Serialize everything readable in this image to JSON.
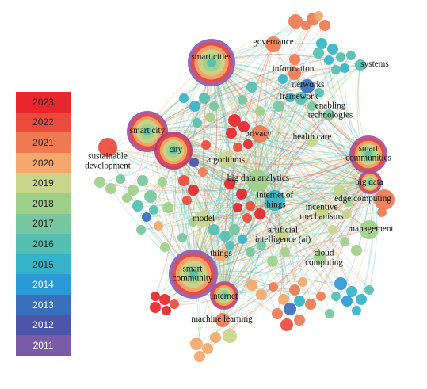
{
  "legend": {
    "years": [
      {
        "label": "2023",
        "color": "#e8262c"
      },
      {
        "label": "2022",
        "color": "#ec4b3c"
      },
      {
        "label": "2021",
        "color": "#f07a52"
      },
      {
        "label": "2020",
        "color": "#f4a86b"
      },
      {
        "label": "2019",
        "color": "#c8d58a"
      },
      {
        "label": "2018",
        "color": "#9fd08a"
      },
      {
        "label": "2017",
        "color": "#76c7a0"
      },
      {
        "label": "2016",
        "color": "#55bfb2"
      },
      {
        "label": "2015",
        "color": "#35b4c9"
      },
      {
        "label": "2014",
        "color": "#2a9ad6"
      },
      {
        "label": "2013",
        "color": "#3a6fbd"
      },
      {
        "label": "2012",
        "color": "#4d55a8"
      },
      {
        "label": "2011",
        "color": "#7a5ba8"
      }
    ]
  },
  "keywords": [
    {
      "id": "smart-cities",
      "text": "smart cities",
      "color": "#f4a86b",
      "ring": "#8e5bb3"
    },
    {
      "id": "smart-city",
      "text": "smart city",
      "color": "#f4a86b",
      "ring": "#a0509e"
    },
    {
      "id": "city",
      "text": "city",
      "color": "#ec4b3c",
      "ring": "#b23a7a"
    },
    {
      "id": "sustainable-development",
      "text": "sustainable\ndevelopment",
      "color": "#ec4b3c"
    },
    {
      "id": "smart-community",
      "text": "smart\ncommunity",
      "color": "#f4a86b",
      "ring": "#8e5bb3"
    },
    {
      "id": "internet",
      "text": "internet",
      "color": "#f07a52",
      "ring": "#a0509e"
    },
    {
      "id": "smart-communities",
      "text": "smart\ncommunities",
      "color": "#f07a52",
      "ring": "#a0509e"
    },
    {
      "id": "big-data",
      "text": "big data",
      "color": "#f07a52",
      "ring": "#a0509e"
    },
    {
      "id": "governance",
      "text": "governance",
      "color": "#f07a52"
    },
    {
      "id": "systems",
      "text": "systems",
      "color": "#55bfb2"
    },
    {
      "id": "information",
      "text": "information",
      "color": "#f07a52"
    },
    {
      "id": "networks",
      "text": "networks",
      "color": "#3a6fbd"
    },
    {
      "id": "framework",
      "text": "framework",
      "color": "#55bfb2"
    },
    {
      "id": "enabling-technologies",
      "text": "enabling\ntechnologies",
      "color": "#76c7a0"
    },
    {
      "id": "privacy",
      "text": "privacy",
      "color": "#f07a52"
    },
    {
      "id": "health-care",
      "text": "health care",
      "color": "#c8d58a"
    },
    {
      "id": "algorithms",
      "text": "algorithms",
      "color": "#c8d58a"
    },
    {
      "id": "big-data-analytics",
      "text": "big data analytics",
      "color": "#9fd08a"
    },
    {
      "id": "internet-of-things",
      "text": "internet of\nthings",
      "color": "#35b4c9"
    },
    {
      "id": "edge-computing",
      "text": "edge computing",
      "color": "#f07a52"
    },
    {
      "id": "incentive-mechanisms",
      "text": "incentive\nmechanisms",
      "color": "#c8d58a"
    },
    {
      "id": "model",
      "text": "model",
      "color": "#c8d58a"
    },
    {
      "id": "management",
      "text": "management",
      "color": "#9fd08a"
    },
    {
      "id": "artificial-intelligence",
      "text": "artificial\nintelligence (ai)",
      "color": "#c8d58a"
    },
    {
      "id": "cloud-computing",
      "text": "cloud\ncomputing",
      "color": "#9fd08a"
    },
    {
      "id": "things",
      "text": "things",
      "color": "#f4a86b"
    },
    {
      "id": "machine-learning",
      "text": "machine learning",
      "color": "#f07a52"
    }
  ]
}
